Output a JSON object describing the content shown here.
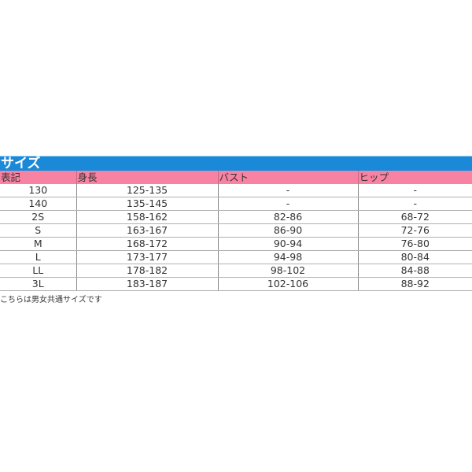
{
  "title": "サイズ",
  "colors": {
    "title_bar": "#1a8ad8",
    "header_row": "#f882a2"
  },
  "table": {
    "headers": [
      "表記",
      "身長",
      "バスト",
      "ヒップ"
    ],
    "rows": [
      [
        "130",
        "125-135",
        "-",
        "-"
      ],
      [
        "140",
        "135-145",
        "-",
        "-"
      ],
      [
        "2S",
        "158-162",
        "82-86",
        "68-72"
      ],
      [
        "S",
        "163-167",
        "86-90",
        "72-76"
      ],
      [
        "M",
        "168-172",
        "90-94",
        "76-80"
      ],
      [
        "L",
        "173-177",
        "94-98",
        "80-84"
      ],
      [
        "LL",
        "178-182",
        "98-102",
        "84-88"
      ],
      [
        "3L",
        "183-187",
        "102-106",
        "88-92"
      ]
    ]
  },
  "note": "こちらは男女共通サイズです"
}
